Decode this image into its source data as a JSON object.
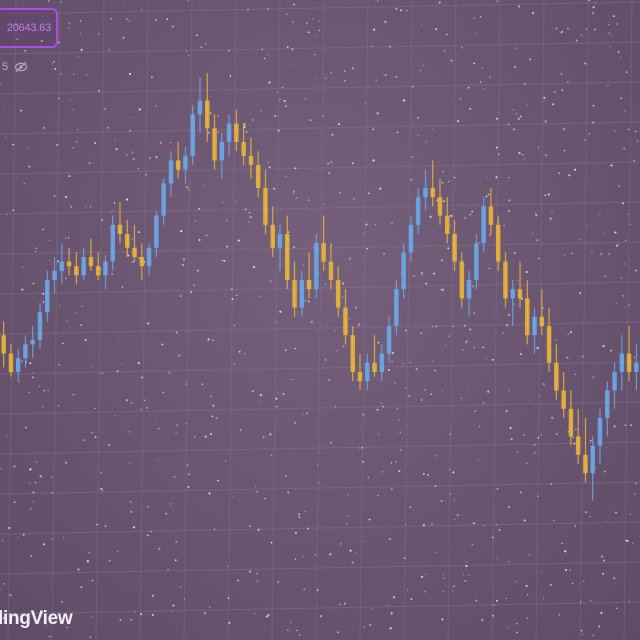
{
  "header": {
    "price_label": "20643.63",
    "sub_label": "5"
  },
  "branding": {
    "watermark": "lingView"
  },
  "colors": {
    "background": "#6a5570",
    "grid": "#8a7790",
    "up_candle": "#6aa7e6",
    "down_candle": "#e8b43a",
    "price_box_border": "#b24be0"
  },
  "chart_data": {
    "type": "candlestick",
    "title": "",
    "xlabel": "",
    "ylabel": "",
    "grid": true,
    "ylim": [
      0,
      100
    ],
    "candles": [
      [
        38,
        41,
        31,
        34
      ],
      [
        34,
        36,
        29,
        30
      ],
      [
        30,
        35,
        28,
        33
      ],
      [
        33,
        38,
        31,
        36
      ],
      [
        36,
        40,
        33,
        37
      ],
      [
        37,
        45,
        35,
        43
      ],
      [
        43,
        52,
        41,
        50
      ],
      [
        50,
        55,
        47,
        52
      ],
      [
        52,
        58,
        49,
        54
      ],
      [
        54,
        57,
        51,
        53
      ],
      [
        53,
        56,
        49,
        51
      ],
      [
        51,
        57,
        50,
        55
      ],
      [
        55,
        59,
        52,
        53
      ],
      [
        53,
        56,
        50,
        51
      ],
      [
        51,
        55,
        48,
        54
      ],
      [
        54,
        64,
        52,
        62
      ],
      [
        62,
        67,
        58,
        60
      ],
      [
        60,
        63,
        55,
        57
      ],
      [
        57,
        62,
        54,
        55
      ],
      [
        55,
        58,
        50,
        53
      ],
      [
        53,
        58,
        51,
        57
      ],
      [
        57,
        65,
        55,
        64
      ],
      [
        64,
        72,
        62,
        71
      ],
      [
        71,
        78,
        68,
        76
      ],
      [
        76,
        80,
        72,
        74
      ],
      [
        74,
        79,
        71,
        77
      ],
      [
        77,
        88,
        75,
        86
      ],
      [
        86,
        94,
        82,
        89
      ],
      [
        89,
        95,
        80,
        83
      ],
      [
        83,
        86,
        74,
        76
      ],
      [
        76,
        82,
        72,
        80
      ],
      [
        80,
        86,
        77,
        84
      ],
      [
        84,
        87,
        78,
        80
      ],
      [
        80,
        84,
        75,
        77
      ],
      [
        77,
        81,
        72,
        75
      ],
      [
        75,
        78,
        68,
        70
      ],
      [
        70,
        74,
        60,
        62
      ],
      [
        62,
        66,
        55,
        57
      ],
      [
        57,
        62,
        52,
        60
      ],
      [
        60,
        64,
        48,
        50
      ],
      [
        50,
        54,
        42,
        44
      ],
      [
        44,
        52,
        42,
        50
      ],
      [
        50,
        56,
        46,
        48
      ],
      [
        48,
        60,
        46,
        58
      ],
      [
        58,
        64,
        52,
        54
      ],
      [
        54,
        58,
        48,
        50
      ],
      [
        50,
        53,
        42,
        44
      ],
      [
        44,
        48,
        36,
        38
      ],
      [
        38,
        40,
        28,
        30
      ],
      [
        30,
        34,
        26,
        28
      ],
      [
        28,
        34,
        26,
        32
      ],
      [
        32,
        38,
        29,
        30
      ],
      [
        30,
        36,
        28,
        34
      ],
      [
        34,
        42,
        32,
        40
      ],
      [
        40,
        50,
        38,
        48
      ],
      [
        48,
        58,
        46,
        56
      ],
      [
        56,
        64,
        54,
        62
      ],
      [
        62,
        70,
        60,
        68
      ],
      [
        68,
        74,
        65,
        70
      ],
      [
        70,
        76,
        66,
        68
      ],
      [
        68,
        72,
        62,
        64
      ],
      [
        64,
        68,
        58,
        60
      ],
      [
        60,
        63,
        52,
        54
      ],
      [
        54,
        56,
        44,
        46
      ],
      [
        46,
        52,
        42,
        50
      ],
      [
        50,
        60,
        48,
        58
      ],
      [
        58,
        68,
        56,
        66
      ],
      [
        66,
        70,
        60,
        62
      ],
      [
        62,
        64,
        52,
        54
      ],
      [
        54,
        56,
        44,
        46
      ],
      [
        46,
        50,
        40,
        48
      ],
      [
        48,
        54,
        44,
        46
      ],
      [
        46,
        50,
        36,
        38
      ],
      [
        38,
        44,
        34,
        42
      ],
      [
        42,
        48,
        38,
        40
      ],
      [
        40,
        44,
        30,
        32
      ],
      [
        32,
        36,
        24,
        26
      ],
      [
        26,
        30,
        20,
        22
      ],
      [
        22,
        26,
        14,
        16
      ],
      [
        16,
        22,
        10,
        12
      ],
      [
        12,
        20,
        6,
        8
      ],
      [
        8,
        16,
        2,
        14
      ],
      [
        14,
        22,
        10,
        20
      ],
      [
        20,
        28,
        16,
        26
      ],
      [
        26,
        32,
        22,
        30
      ],
      [
        30,
        38,
        26,
        34
      ],
      [
        34,
        40,
        28,
        30
      ],
      [
        30,
        36,
        26,
        32
      ]
    ]
  }
}
